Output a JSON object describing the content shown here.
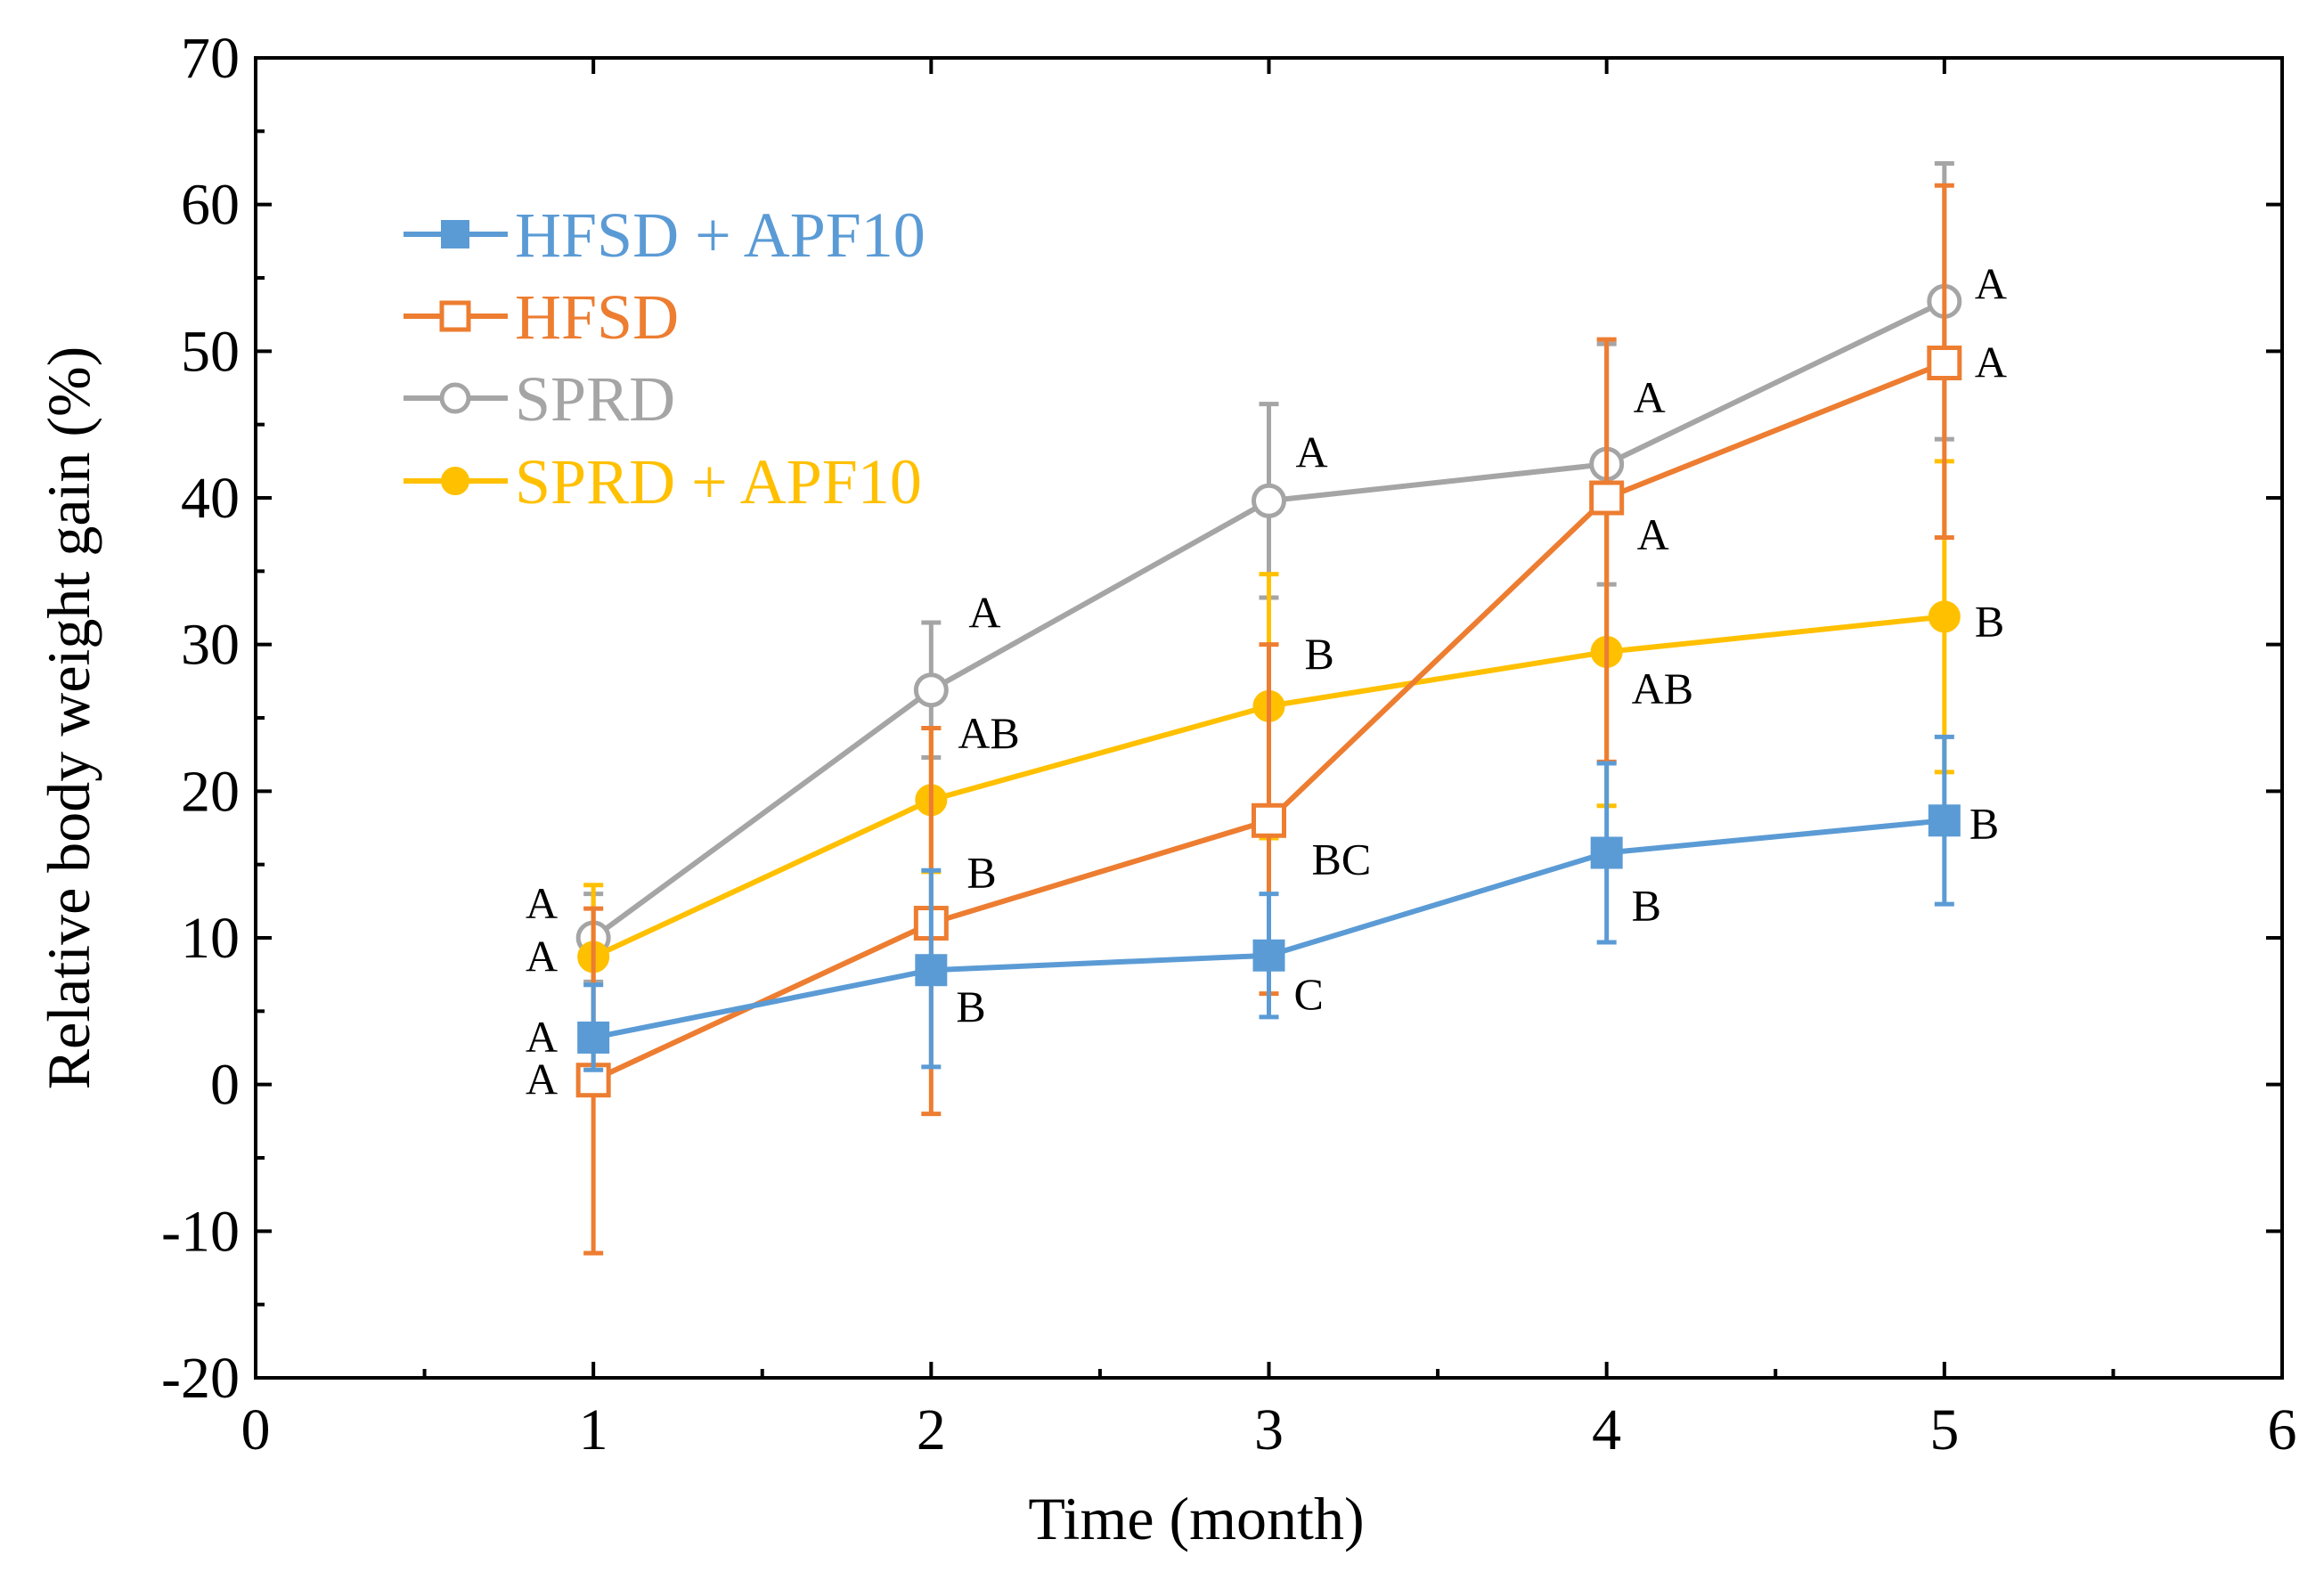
{
  "chart_data": {
    "type": "line",
    "title": "",
    "xlabel": "Time (month)",
    "ylabel": "Relative body weight gain (%)",
    "xlim": [
      0,
      6
    ],
    "ylim": [
      -20,
      70
    ],
    "xticks": [
      "0",
      "1",
      "2",
      "3",
      "4",
      "5",
      "6"
    ],
    "yticks": [
      "-20",
      "-10",
      "0",
      "10",
      "20",
      "30",
      "40",
      "50",
      "60",
      "70"
    ],
    "x": [
      1,
      2,
      3,
      4,
      5
    ],
    "legend_position": "top-left",
    "series": [
      {
        "name": "HFSD + APF10",
        "color": "#5B9BD5",
        "marker": "filled-square",
        "values": [
          3.2,
          7.8,
          8.8,
          15.8,
          18.0
        ],
        "err_upper": [
          6.8,
          14.6,
          13.0,
          21.9,
          23.7
        ],
        "err_lower": [
          1.0,
          1.2,
          4.6,
          9.7,
          12.3
        ],
        "letters": [
          "A",
          "B",
          "C",
          "B",
          "B"
        ]
      },
      {
        "name": "HFSD",
        "color": "#ED7D31",
        "marker": "open-square",
        "values": [
          0.3,
          11.0,
          18.0,
          40.0,
          49.2
        ],
        "err_upper": [
          12.0,
          24.3,
          30.0,
          50.8,
          61.3
        ],
        "err_lower": [
          -11.5,
          -2.0,
          6.2,
          22.0,
          37.3
        ],
        "letters": [
          "A",
          "B",
          "BC",
          "A",
          "A"
        ]
      },
      {
        "name": "SPRD",
        "color": "#A5A5A5",
        "marker": "open-circle",
        "values": [
          10.0,
          26.9,
          39.8,
          42.3,
          53.4
        ],
        "err_upper": [
          13.0,
          31.5,
          46.4,
          50.5,
          62.8
        ],
        "err_lower": [
          7.0,
          22.3,
          33.2,
          34.1,
          44.0
        ],
        "letters": [
          "A",
          "A",
          "A",
          "A",
          "A"
        ]
      },
      {
        "name": "SPRD + APF10",
        "color": "#FFC000",
        "marker": "filled-circle",
        "values": [
          8.7,
          19.4,
          25.8,
          29.5,
          31.9
        ],
        "err_upper": [
          13.6,
          24.3,
          34.8,
          40.0,
          42.5
        ],
        "err_lower": [
          3.8,
          14.5,
          16.8,
          19.0,
          21.3
        ],
        "letters": [
          "A",
          "AB",
          "B",
          "AB",
          "B"
        ]
      }
    ]
  }
}
